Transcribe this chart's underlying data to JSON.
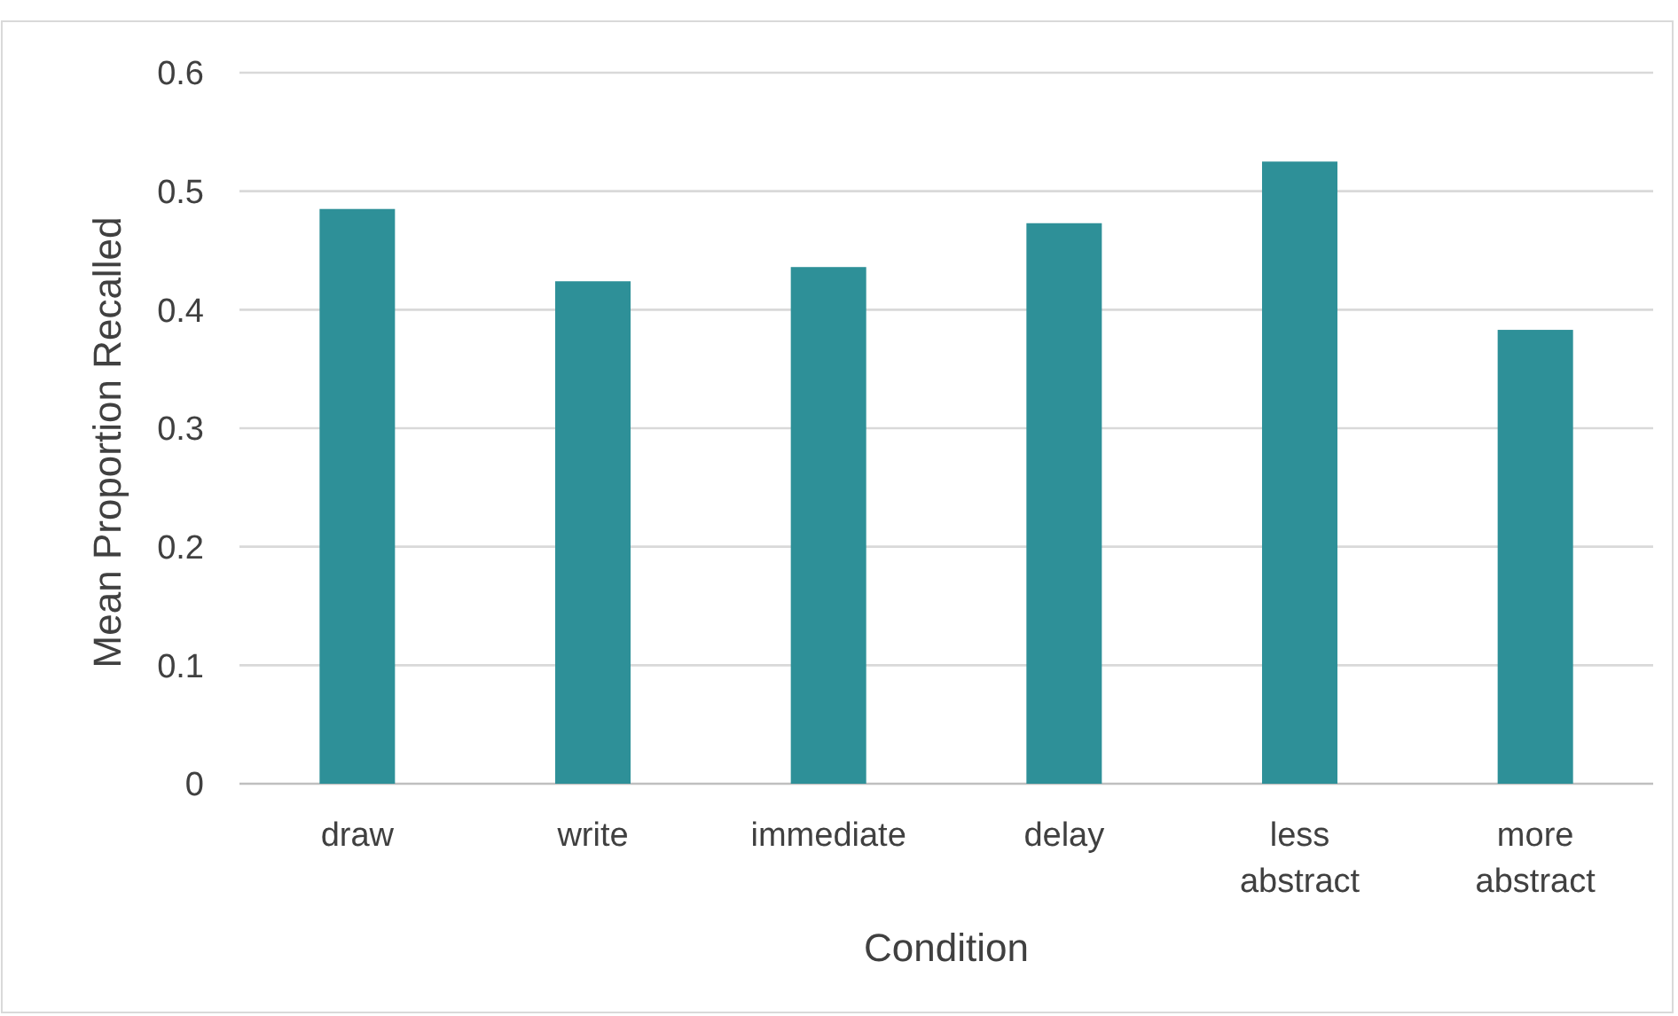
{
  "chart_data": {
    "type": "bar",
    "xlabel": "Condition",
    "ylabel": "Mean Proportion Recalled",
    "categories": [
      "draw",
      "write",
      "immediate",
      "delay",
      "less abstract",
      "more abstract"
    ],
    "values": [
      0.485,
      0.424,
      0.436,
      0.473,
      0.525,
      0.383
    ],
    "color": "#2e9098",
    "ylim": [
      0,
      0.6
    ],
    "yticks": [
      0,
      0.1,
      0.2,
      0.3,
      0.4,
      0.5,
      0.6
    ],
    "grid": "y"
  }
}
